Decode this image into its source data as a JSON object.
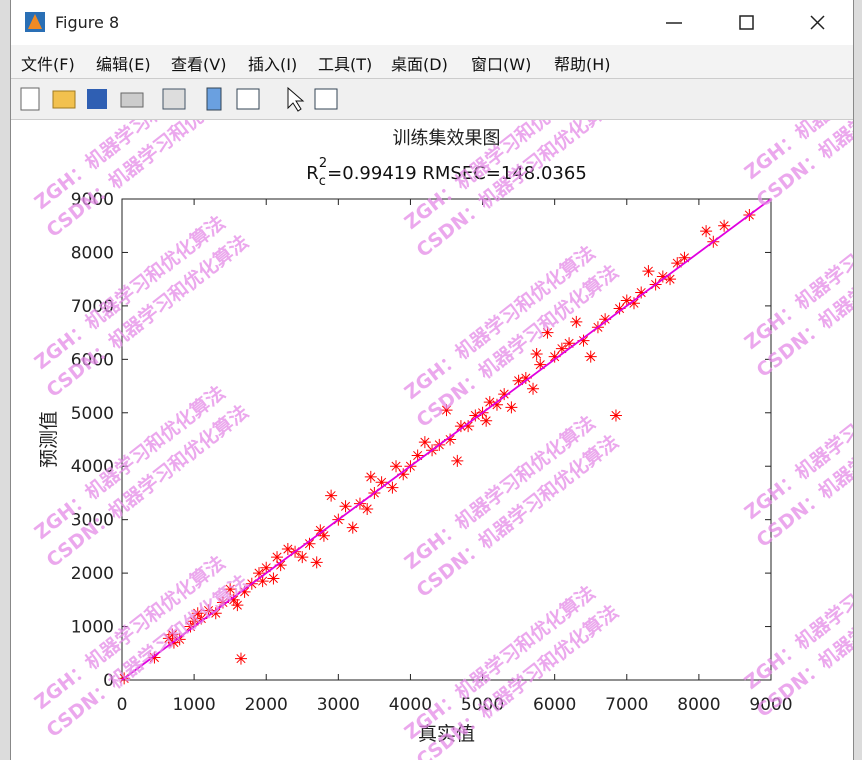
{
  "window": {
    "title": "Figure 8",
    "menu": [
      "文件(F)",
      "编辑(E)",
      "查看(V)",
      "插入(I)",
      "工具(T)",
      "桌面(D)",
      "窗口(W)",
      "帮助(H)"
    ]
  },
  "watermarks": [
    "ZGH：机器学习和优化算法",
    "CSDN：机器学习和优化算法"
  ],
  "chart_data": {
    "type": "scatter",
    "title": "训练集效果图",
    "subtitle": {
      "base": "R",
      "sub": "c",
      "sup": "2",
      "rest": "=0.99419  RMSEC=148.0365"
    },
    "xlabel": "真实值",
    "ylabel": "预测值",
    "xlim": [
      0,
      9000
    ],
    "ylim": [
      0,
      9000
    ],
    "xticks": [
      0,
      1000,
      2000,
      3000,
      4000,
      5000,
      6000,
      7000,
      8000,
      9000
    ],
    "yticks": [
      0,
      1000,
      2000,
      3000,
      4000,
      5000,
      6000,
      7000,
      8000,
      9000
    ],
    "series": [
      {
        "name": "训练集",
        "color": "#ff0000",
        "x": [
          30,
          450,
          650,
          700,
          720,
          800,
          950,
          1000,
          1050,
          1100,
          1200,
          1300,
          1400,
          1500,
          1550,
          1600,
          1650,
          1700,
          1800,
          1900,
          1950,
          2000,
          2100,
          2150,
          2200,
          2300,
          2400,
          2500,
          2600,
          2700,
          2750,
          2800,
          2900,
          3000,
          3100,
          3200,
          3300,
          3400,
          3450,
          3500,
          3600,
          3750,
          3800,
          3900,
          4000,
          4100,
          4200,
          4300,
          4400,
          4500,
          4550,
          4650,
          4700,
          4800,
          4900,
          5000,
          5050,
          5100,
          5200,
          5300,
          5400,
          5500,
          5600,
          5700,
          5750,
          5800,
          5900,
          6000,
          6100,
          6200,
          6300,
          6400,
          6500,
          6600,
          6700,
          6850,
          6900,
          7000,
          7100,
          7200,
          7300,
          7400,
          7500,
          7600,
          7700,
          7800,
          8100,
          8200,
          8350,
          8700
        ],
        "values": [
          30,
          420,
          780,
          850,
          700,
          760,
          1000,
          1100,
          1250,
          1150,
          1300,
          1250,
          1450,
          1700,
          1500,
          1400,
          400,
          1650,
          1800,
          2000,
          1850,
          2100,
          1900,
          2300,
          2150,
          2450,
          2400,
          2300,
          2550,
          2200,
          2800,
          2700,
          3450,
          3000,
          3250,
          2850,
          3300,
          3200,
          3800,
          3500,
          3700,
          3600,
          4000,
          3850,
          4000,
          4200,
          4450,
          4300,
          4400,
          5050,
          4500,
          4100,
          4750,
          4750,
          4950,
          5000,
          4850,
          5200,
          5150,
          5350,
          5100,
          5600,
          5650,
          5450,
          6100,
          5900,
          6500,
          6050,
          6200,
          6300,
          6700,
          6350,
          6050,
          6600,
          6750,
          4950,
          6950,
          7100,
          7050,
          7250,
          7650,
          7400,
          7550,
          7500,
          7800,
          7900,
          8400,
          8200,
          8500,
          8700
        ]
      },
      {
        "name": "y=x",
        "color": "#e000e0",
        "line": true,
        "x": [
          0,
          9000
        ],
        "values": [
          0,
          9000
        ]
      }
    ]
  }
}
